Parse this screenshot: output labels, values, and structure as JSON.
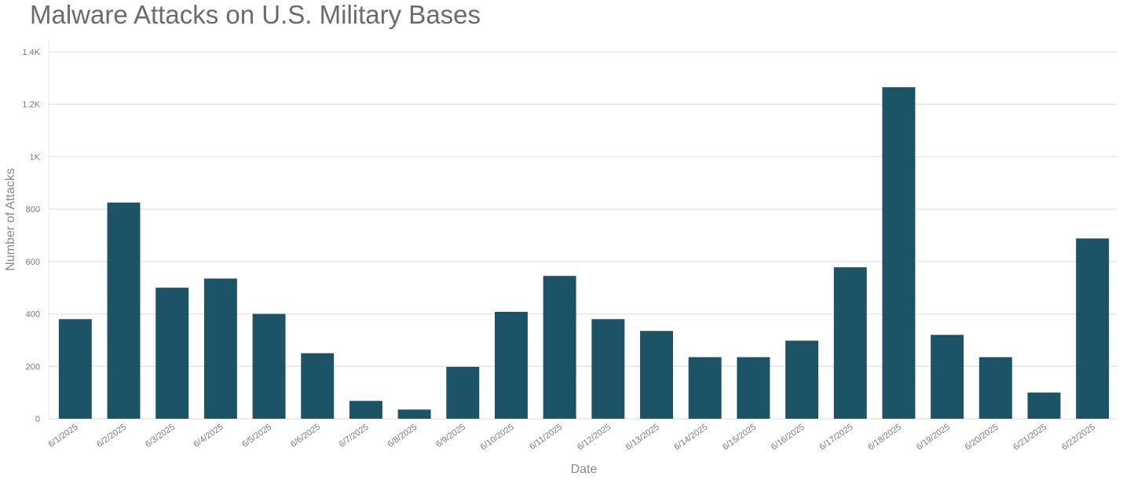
{
  "chart_data": {
    "type": "bar",
    "title": "Malware Attacks on U.S. Military Bases",
    "xlabel": "Date",
    "ylabel": "Number of Attacks",
    "categories": [
      "6/1/2025",
      "6/2/2025",
      "6/3/2025",
      "6/4/2025",
      "6/5/2025",
      "6/6/2025",
      "6/7/2025",
      "6/8/2025",
      "6/9/2025",
      "6/10/2025",
      "6/11/2025",
      "6/12/2025",
      "6/13/2025",
      "6/14/2025",
      "6/15/2025",
      "6/16/2025",
      "6/17/2025",
      "6/18/2025",
      "6/19/2025",
      "6/20/2025",
      "6/21/2025",
      "6/22/2025"
    ],
    "values": [
      380,
      825,
      500,
      535,
      400,
      250,
      68,
      35,
      198,
      408,
      545,
      380,
      335,
      235,
      235,
      298,
      578,
      1265,
      320,
      235,
      100,
      688
    ],
    "ylim": [
      0,
      1400
    ],
    "yticks": [
      0,
      200,
      400,
      600,
      800,
      1000,
      1200,
      1400
    ],
    "ytick_labels": [
      "0",
      "200",
      "400",
      "600",
      "800",
      "1K",
      "1.2K",
      "1.4K"
    ],
    "grid": true,
    "bar_color": "#1c5366",
    "grid_color": "#e6e6e6"
  }
}
